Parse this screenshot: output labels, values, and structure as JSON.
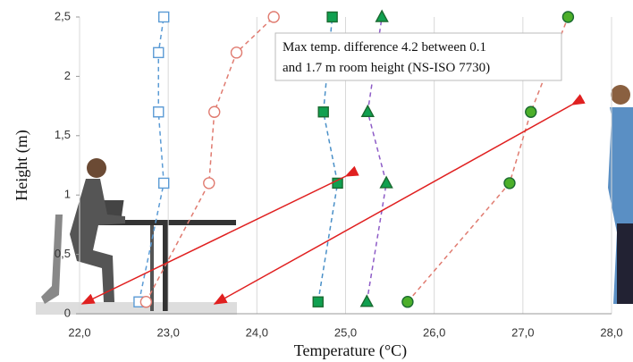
{
  "chart_data": {
    "type": "scatter",
    "x_label": "Temperature (°C)",
    "y_label": "Height (m)",
    "annotation": [
      "Max temp. difference 4.2 between 0.1",
      "and 1.7 m room height (NS-ISO 7730)"
    ],
    "xlim": [
      22.0,
      28.0
    ],
    "xticks": [
      {
        "value": 22.0,
        "label": "22,0"
      },
      {
        "value": 23.0,
        "label": "23,0"
      },
      {
        "value": 24.0,
        "label": "24,0"
      },
      {
        "value": 25.0,
        "label": "25,0"
      },
      {
        "value": 26.0,
        "label": "26,0"
      },
      {
        "value": 27.0,
        "label": "27,0"
      },
      {
        "value": 28.0,
        "label": "28,0"
      }
    ],
    "ylim": [
      0,
      2.5
    ],
    "yticks": [
      0,
      {
        "value": 0.5,
        "label": "0,5"
      },
      1,
      {
        "value": 1.5,
        "label": "1,5"
      },
      2,
      {
        "value": 2.5,
        "label": "2,5"
      }
    ],
    "grid": "x",
    "series": [
      {
        "x": [
          22.67,
          22.95,
          22.89,
          22.89,
          22.95
        ],
        "y": [
          0.1,
          1.1,
          1.7,
          2.2,
          2.5
        ],
        "color": "#5b9bd5",
        "marker": "square",
        "fill": "none"
      },
      {
        "x": [
          22.75,
          23.46,
          23.52,
          23.77,
          24.19
        ],
        "y": [
          0.1,
          1.1,
          1.7,
          2.2,
          2.5
        ],
        "color": "#e07b70",
        "marker": "circle",
        "fill": "none"
      },
      {
        "x": [
          24.69,
          24.91,
          24.75,
          24.85
        ],
        "y": [
          0.1,
          1.1,
          1.7,
          2.5
        ],
        "color": "#4a90c8",
        "marker": "square",
        "fill": "#10a050"
      },
      {
        "x": [
          25.24,
          25.46,
          25.25,
          25.41
        ],
        "y": [
          0.1,
          1.1,
          1.7,
          2.5
        ],
        "color": "#8e5cc7",
        "marker": "triangle",
        "fill": "#10a050"
      },
      {
        "x": [
          25.7,
          26.85,
          27.09,
          27.51
        ],
        "y": [
          0.1,
          1.1,
          1.7,
          2.5
        ],
        "color": "#e07b70",
        "marker": "circle",
        "fill": "#4caf2a"
      }
    ]
  }
}
